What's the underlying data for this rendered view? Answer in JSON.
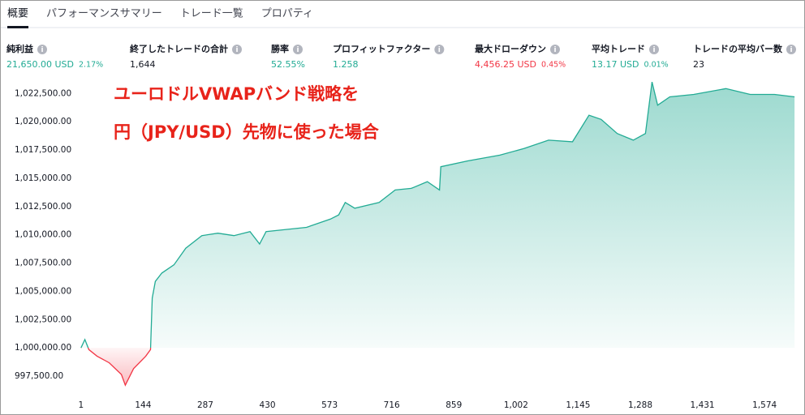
{
  "tabs": [
    "概要",
    "パフォーマンスサマリー",
    "トレード一覧",
    "プロパティ"
  ],
  "active_tab": 0,
  "stats": [
    {
      "label": "純利益",
      "value": "21,650.00 USD",
      "pct": "2.17%",
      "tone": "pos"
    },
    {
      "label": "終了したトレードの合計",
      "value": "1,644",
      "tone": "neutral"
    },
    {
      "label": "勝率",
      "value": "52.55%",
      "tone": "pos"
    },
    {
      "label": "プロフィットファクター",
      "value": "1.258",
      "tone": "pos"
    },
    {
      "label": "最大ドローダウン",
      "value": "4,456.25 USD",
      "pct": "0.45%",
      "tone": "neg"
    },
    {
      "label": "平均トレード",
      "value": "13.17 USD",
      "pct": "0.01%",
      "tone": "pos"
    },
    {
      "label": "トレードの平均バー数",
      "value": "23",
      "tone": "neutral"
    }
  ],
  "chart_data": {
    "type": "area",
    "annotation": [
      "ユーロドルVWAPバンド戦略を",
      "円（JPY/USD）先物に使った場合"
    ],
    "color_up": "#22ab94",
    "color_down": "#f23645",
    "x": [
      1,
      10,
      19,
      38,
      66,
      94,
      103,
      122,
      150,
      161,
      165,
      172,
      187,
      215,
      242,
      279,
      316,
      353,
      390,
      412,
      427,
      464,
      520,
      575,
      594,
      609,
      631,
      687,
      724,
      761,
      798,
      826,
      829,
      891,
      965,
      1021,
      1077,
      1132,
      1170,
      1198,
      1235,
      1272,
      1300,
      1315,
      1328,
      1356,
      1411,
      1485,
      1541,
      1597,
      1643
    ],
    "values": [
      1000000,
      1000735,
      999850,
      999265,
      998680,
      997650,
      996700,
      998160,
      999265,
      999850,
      1004410,
      1005880,
      1006615,
      1007350,
      1008820,
      1009925,
      1010145,
      1009925,
      1010290,
      1009190,
      1010290,
      1010440,
      1010660,
      1011390,
      1011760,
      1012860,
      1012350,
      1012860,
      1013965,
      1014110,
      1014700,
      1013965,
      1016025,
      1016540,
      1017050,
      1017640,
      1018375,
      1018230,
      1020580,
      1020210,
      1018960,
      1018375,
      1018960,
      1023520,
      1021460,
      1022200,
      1022420,
      1022935,
      1022420,
      1022420,
      1022200
    ],
    "xlim": [
      -8,
      1654
    ],
    "xticks": [
      1,
      144,
      287,
      430,
      573,
      716,
      859,
      {
        "value": 1002,
        "label": "1,002"
      },
      {
        "value": 1145,
        "label": "1,145"
      },
      {
        "value": 1288,
        "label": "1,288"
      },
      {
        "value": 1431,
        "label": "1,431"
      },
      {
        "value": 1574,
        "label": "1,574"
      }
    ],
    "ylim": [
      996500,
      1023600
    ],
    "yticks": [
      {
        "value": 997500,
        "label": "997,500.00"
      },
      {
        "value": 1000000,
        "label": "1,000,000.00"
      },
      {
        "value": 1002500,
        "label": "1,002,500.00"
      },
      {
        "value": 1005000,
        "label": "1,005,000.00"
      },
      {
        "value": 1007500,
        "label": "1,007,500.00"
      },
      {
        "value": 1010000,
        "label": "1,010,000.00"
      },
      {
        "value": 1012500,
        "label": "1,012,500.00"
      },
      {
        "value": 1015000,
        "label": "1,015,000.00"
      },
      {
        "value": 1017500,
        "label": "1,017,500.00"
      },
      {
        "value": 1020000,
        "label": "1,020,000.00"
      },
      {
        "value": 1022500,
        "label": "1,022,500.00"
      }
    ]
  }
}
